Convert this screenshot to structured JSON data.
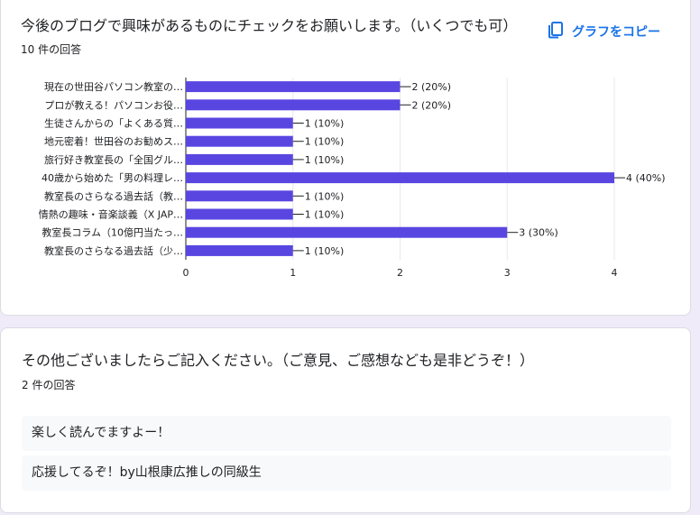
{
  "question1": {
    "title": "今後のブログで興味があるものにチェックをお願いします。（いくつでも可）",
    "response_count": "10 件の回答",
    "copy_label": "グラフをコピー",
    "copy_icon": "copy-icon"
  },
  "chart_data": {
    "type": "bar",
    "orientation": "horizontal",
    "categories": [
      "現在の世田谷パソコン教室の…",
      "プロが教える！パソコンお役…",
      "生徒さんからの「よくある質…",
      "地元密着！世田谷のお勧めス…",
      "旅行好き教室長の「全国グル…",
      "40歳から始めた「男の料理レ…",
      "教室長のさらなる過去話（教…",
      "情熱の趣味・音楽談義（X JAP…",
      "教室長コラム（10億円当たっ…",
      "教室長のさらなる過去話（少…"
    ],
    "values": [
      2,
      2,
      1,
      1,
      1,
      4,
      1,
      1,
      3,
      1
    ],
    "data_labels": [
      "2 (20%)",
      "2 (20%)",
      "1 (10%)",
      "1 (10%)",
      "1 (10%)",
      "4 (40%)",
      "1 (10%)",
      "1 (10%)",
      "3 (30%)",
      "1 (10%)"
    ],
    "xlim": [
      0,
      4
    ],
    "xticks": [
      "0",
      "1",
      "2",
      "3",
      "4"
    ],
    "grid": true,
    "bar_color": "#5946e1"
  },
  "question2": {
    "title": "その他ございましたらご記入ください。（ご意見、ご感想なども是非どうぞ！）",
    "response_count": "2 件の回答",
    "responses": [
      "楽しく読んでますよー！",
      "応援してるぞ！by山根康広推しの同級生"
    ]
  }
}
